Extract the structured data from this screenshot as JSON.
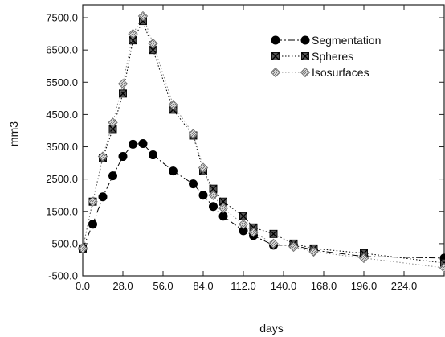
{
  "chart_data": {
    "type": "line",
    "title": "",
    "xlabel": "days",
    "ylabel": "mm3",
    "xlim": [
      0,
      252
    ],
    "ylim": [
      -500,
      7900
    ],
    "x_ticks": [
      0,
      28,
      56,
      84,
      112,
      140,
      168,
      196,
      224
    ],
    "x_tick_labels": [
      "0.0",
      "28.0",
      "56.0",
      "84.0",
      "112.0",
      "140.0",
      "168.0",
      "196.0",
      "224.0"
    ],
    "y_ticks": [
      -500,
      500,
      1500,
      2500,
      3500,
      4500,
      5500,
      6500,
      7500
    ],
    "y_tick_labels": [
      "-500.0",
      "500.0",
      "1500.0",
      "2500.0",
      "3500.0",
      "4500.0",
      "5500.0",
      "6500.0",
      "7500.0"
    ],
    "grid": false,
    "legend_position": "top-right",
    "series": [
      {
        "name": "Segmentation",
        "line_style": "dashdot",
        "marker": "circle",
        "color": "#000000",
        "x": [
          0,
          7,
          14,
          21,
          28,
          35,
          42,
          49,
          63,
          77,
          84,
          91,
          98,
          112,
          119,
          133,
          147,
          161,
          196,
          252
        ],
        "y": [
          350,
          1100,
          1950,
          2600,
          3200,
          3580,
          3600,
          3250,
          2750,
          2350,
          2000,
          1650,
          1350,
          900,
          750,
          450,
          450,
          300,
          100,
          50
        ]
      },
      {
        "name": "Spheres",
        "line_style": "dotted",
        "marker": "square-x",
        "color": "#000000",
        "x": [
          0,
          7,
          14,
          21,
          28,
          35,
          42,
          49,
          63,
          77,
          84,
          91,
          98,
          112,
          119,
          133,
          147,
          161,
          196,
          252
        ],
        "y": [
          350,
          1800,
          3150,
          4050,
          5150,
          6800,
          7400,
          6500,
          4650,
          3850,
          2750,
          2200,
          1800,
          1350,
          1000,
          800,
          500,
          350,
          200,
          -100
        ]
      },
      {
        "name": "Isosurfaces",
        "line_style": "dotted",
        "marker": "diamond-hatched",
        "color": "#8a8a8a",
        "x": [
          0,
          7,
          14,
          21,
          28,
          35,
          42,
          49,
          63,
          77,
          84,
          91,
          98,
          112,
          119,
          133,
          147,
          161,
          196,
          252
        ],
        "y": [
          350,
          1800,
          3200,
          4250,
          5450,
          7000,
          7550,
          6700,
          4800,
          3900,
          2850,
          2000,
          1600,
          1100,
          850,
          500,
          400,
          250,
          50,
          -250
        ]
      }
    ]
  }
}
